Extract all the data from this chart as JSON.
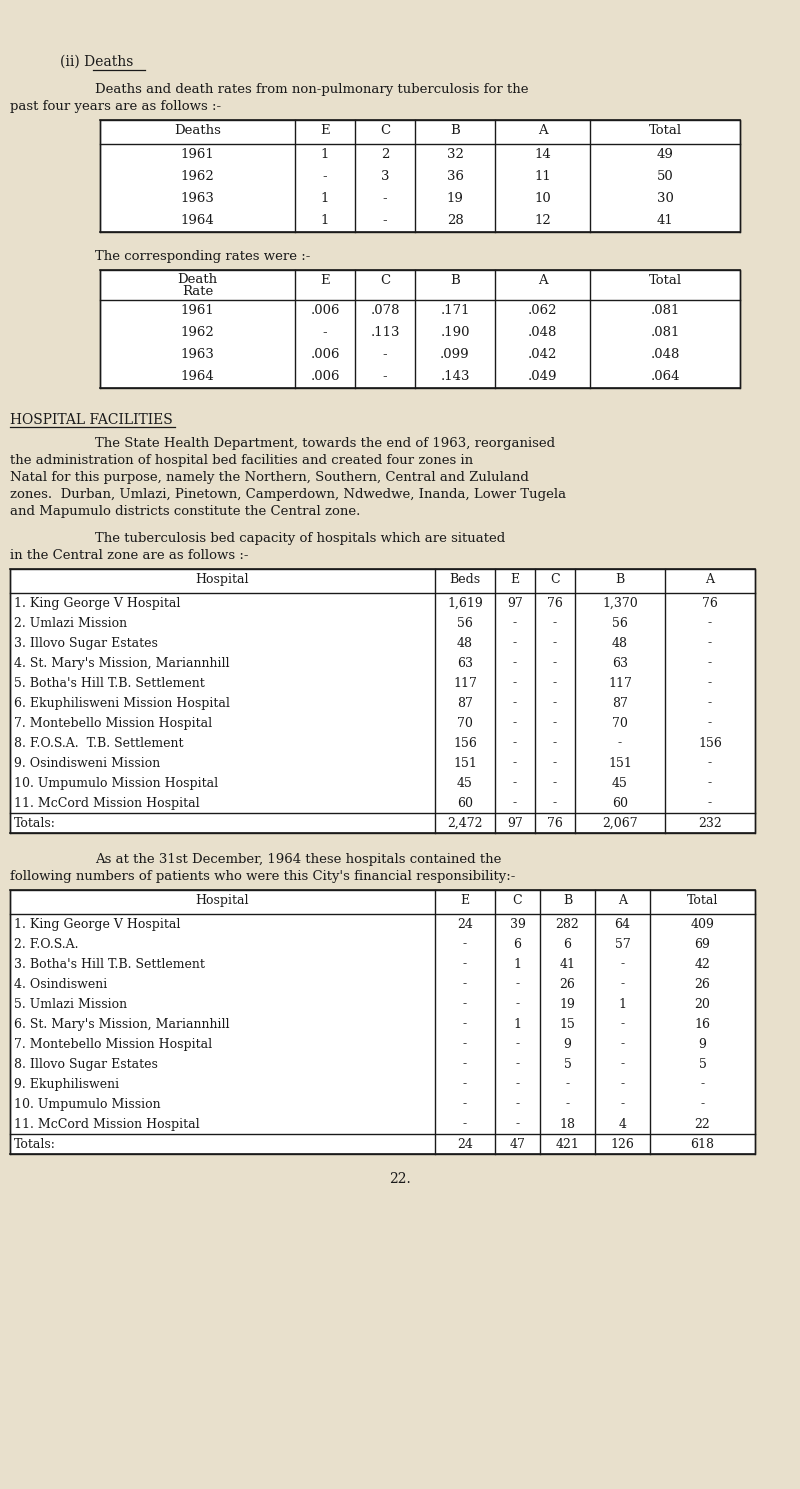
{
  "bg_color": "#e8e0cc",
  "text_color": "#1a1a1a",
  "table1_header": [
    "Deaths",
    "E",
    "C",
    "B",
    "A",
    "Total"
  ],
  "table1_rows": [
    [
      "1961",
      "1",
      "2",
      "32",
      "14",
      "49"
    ],
    [
      "1962",
      "-",
      "3",
      "36",
      "11",
      "50"
    ],
    [
      "1963",
      "1",
      "-",
      "19",
      "10",
      "30"
    ],
    [
      "1964",
      "1",
      "-",
      "28",
      "12",
      "41"
    ]
  ],
  "table2_header": [
    "Death\nRate",
    "E",
    "C",
    "B",
    "A",
    "Total"
  ],
  "table2_rows": [
    [
      "1961",
      ".006",
      ".078",
      ".171",
      ".062",
      ".081"
    ],
    [
      "1962",
      "-",
      ".113",
      ".190",
      ".048",
      ".081"
    ],
    [
      "1963",
      ".006",
      "-",
      ".099",
      ".042",
      ".048"
    ],
    [
      "1964",
      ".006",
      "-",
      ".143",
      ".049",
      ".064"
    ]
  ],
  "section_title": "HOSPITAL FACILITIES",
  "table3_header": [
    "Hospital",
    "Beds",
    "E",
    "C",
    "B",
    "A"
  ],
  "table3_rows": [
    [
      "1. King George V Hospital",
      "1,619",
      "97",
      "76",
      "1,370",
      "76"
    ],
    [
      "2. Umlazi Mission",
      "56",
      "-",
      "-",
      "56",
      "-"
    ],
    [
      "3. Illovo Sugar Estates",
      "48",
      "-",
      "-",
      "48",
      "-"
    ],
    [
      "4. St. Mary's Mission, Mariannhill",
      "63",
      "-",
      "-",
      "63",
      "-"
    ],
    [
      "5. Botha's Hill T.B. Settlement",
      "117",
      "-",
      "-",
      "117",
      "-"
    ],
    [
      "6. Ekuphilisweni Mission Hospital",
      "87",
      "-",
      "-",
      "87",
      "-"
    ],
    [
      "7. Montebello Mission Hospital",
      "70",
      "-",
      "-",
      "70",
      "-"
    ],
    [
      "8. F.O.S.A.  T.B. Settlement",
      "156",
      "-",
      "-",
      "-",
      "156"
    ],
    [
      "9. Osindisweni Mission",
      "151",
      "-",
      "-",
      "151",
      "-"
    ],
    [
      "10. Umpumulo Mission Hospital",
      "45",
      "-",
      "-",
      "45",
      "-"
    ],
    [
      "11. McCord Mission Hospital",
      "60",
      "-",
      "-",
      "60",
      "-"
    ]
  ],
  "table3_totals": [
    "Totals:",
    "2,472",
    "97",
    "76",
    "2,067",
    "232"
  ],
  "table4_header": [
    "Hospital",
    "E",
    "C",
    "B",
    "A",
    "Total"
  ],
  "table4_rows": [
    [
      "1. King George V Hospital",
      "24",
      "39",
      "282",
      "64",
      "409"
    ],
    [
      "2. F.O.S.A.",
      "-",
      "6",
      "6",
      "57",
      "69"
    ],
    [
      "3. Botha's Hill T.B. Settlement",
      "-",
      "1",
      "41",
      "-",
      "42"
    ],
    [
      "4. Osindisweni",
      "-",
      "-",
      "26",
      "-",
      "26"
    ],
    [
      "5. Umlazi Mission",
      "-",
      "-",
      "19",
      "1",
      "20"
    ],
    [
      "6. St. Mary's Mission, Mariannhill",
      "-",
      "1",
      "15",
      "-",
      "16"
    ],
    [
      "7. Montebello Mission Hospital",
      "-",
      "-",
      "9",
      "-",
      "9"
    ],
    [
      "8. Illovo Sugar Estates",
      "-",
      "-",
      "5",
      "-",
      "5"
    ],
    [
      "9. Ekuphilisweni",
      "-",
      "-",
      "-",
      "-",
      "-"
    ],
    [
      "10. Umpumulo Mission",
      "-",
      "-",
      "-",
      "-",
      "-"
    ],
    [
      "11. McCord Mission Hospital",
      "-",
      "-",
      "18",
      "4",
      "22"
    ]
  ],
  "table4_totals": [
    "Totals:",
    "24",
    "47",
    "421",
    "126",
    "618"
  ],
  "page_number": "22."
}
